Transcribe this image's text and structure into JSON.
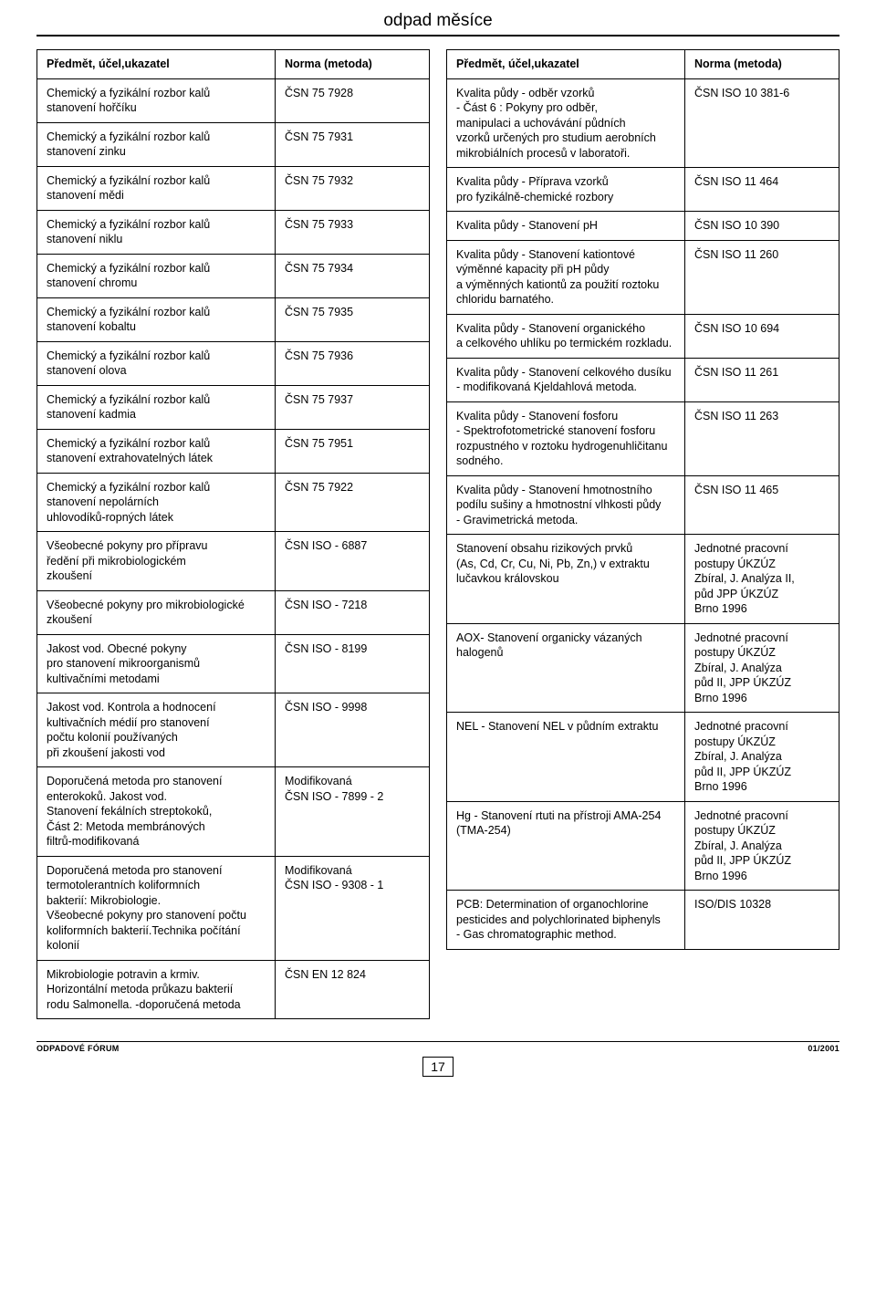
{
  "title": "odpad měsíce",
  "left_header": {
    "subject": "Předmět, účel,ukazatel",
    "norm": "Norma (metoda)"
  },
  "right_header": {
    "subject": "Předmět, účel,ukazatel",
    "norm": "Norma (metoda)"
  },
  "left_rows": [
    {
      "subject": "Chemický a fyzikální rozbor kalů\nstanovení hořčíku",
      "norm": "ČSN 75 7928"
    },
    {
      "subject": "Chemický a fyzikální rozbor kalů\nstanovení zinku",
      "norm": "ČSN 75 7931"
    },
    {
      "subject": "Chemický a fyzikální rozbor kalů\nstanovení mědi",
      "norm": "ČSN 75 7932"
    },
    {
      "subject": "Chemický a fyzikální rozbor kalů\nstanovení niklu",
      "norm": "ČSN 75 7933"
    },
    {
      "subject": "Chemický a fyzikální rozbor kalů\nstanovení chromu",
      "norm": "ČSN 75 7934"
    },
    {
      "subject": "Chemický a fyzikální rozbor kalů\nstanovení kobaltu",
      "norm": "ČSN 75 7935"
    },
    {
      "subject": "Chemický a fyzikální rozbor kalů\nstanovení olova",
      "norm": "ČSN 75 7936"
    },
    {
      "subject": "Chemický a fyzikální rozbor kalů\nstanovení kadmia",
      "norm": "ČSN 75 7937"
    },
    {
      "subject": "Chemický a fyzikální rozbor kalů\nstanovení extrahovatelných látek",
      "norm": "ČSN 75 7951"
    },
    {
      "subject": "Chemický a fyzikální rozbor kalů\nstanovení nepolárních\nuhlovodíků-ropných látek",
      "norm": "ČSN 75 7922"
    },
    {
      "subject": "Všeobecné pokyny pro přípravu\nředění při mikrobiologickém\nzkoušení",
      "norm": "ČSN ISO - 6887"
    },
    {
      "subject": "Všeobecné pokyny pro mikrobiologické\nzkoušení",
      "norm": "ČSN ISO - 7218"
    },
    {
      "subject": "Jakost vod.  Obecné pokyny\npro stanovení mikroorganismů\nkultivačními metodami",
      "norm": "ČSN ISO -  8199"
    },
    {
      "subject": "Jakost vod.  Kontrola a hodnocení\nkultivačních médií pro stanovení\npočtu kolonií používaných\npři zkoušení jakosti vod",
      "norm": "ČSN ISO - 9998"
    },
    {
      "subject": "Doporučená metoda pro stanovení\nenterokoků. Jakost vod.\nStanovení fekálních streptokoků,\nČást 2: Metoda membránových\nfiltrů-modifikovaná",
      "norm": "Modifikovaná\nČSN ISO - 7899 - 2"
    },
    {
      "subject": "Doporučená metoda pro stanovení\ntermotolerantních koliformních\nbakterií: Mikrobiologie.\nVšeobecné pokyny pro stanovení počtu\nkoliformních bakterií.Technika počítání\nkolonií",
      "norm": "Modifikovaná\nČSN ISO - 9308 - 1"
    },
    {
      "subject": "Mikrobiologie potravin a krmiv.\nHorizontální metoda průkazu bakterií\nrodu Salmonella. -doporučená metoda",
      "norm": "ČSN EN 12 824"
    }
  ],
  "right_rows": [
    {
      "subject": "Kvalita půdy - odběr vzorků\n- Část 6 : Pokyny pro odběr,\nmanipulaci a uchovávání půdních\nvzorků určených pro studium aerobních\nmikrobiálních procesů v laboratoři.",
      "norm": "ČSN ISO 10 381-6"
    },
    {
      "subject": "Kvalita půdy - Příprava vzorků\npro fyzikálně-chemické rozbory",
      "norm": "ČSN ISO 11 464"
    },
    {
      "subject": "Kvalita půdy - Stanovení  pH",
      "norm": "ČSN ISO 10 390"
    },
    {
      "subject": "Kvalita půdy - Stanovení kationtové\nvýměnné kapacity při pH půdy\na výměnných kationtů za použití roztoku\nchloridu barnatého.",
      "norm": "ČSN ISO 11 260"
    },
    {
      "subject": "Kvalita půdy - Stanovení organického\na celkového uhlíku po termickém rozkladu.",
      "norm": "ČSN ISO 10 694"
    },
    {
      "subject": "Kvalita půdy - Stanovení celkového dusíku\n- modifikovaná Kjeldahlová metoda.",
      "norm": "ČSN ISO 11 261"
    },
    {
      "subject": "Kvalita půdy - Stanovení fosforu\n- Spektrofotometrické stanovení fosforu\nrozpustného v roztoku hydrogenuhličitanu\nsodného.",
      "norm": "ČSN ISO 11 263"
    },
    {
      "subject": "Kvalita půdy -  Stanovení hmotnostního\npodílu sušiny a hmotnostní vlhkosti půdy\n- Gravimetrická metoda.",
      "norm": "ČSN ISO 11 465"
    },
    {
      "subject": "Stanovení obsahu rizikových prvků\n(As, Cd, Cr, Cu, Ni, Pb, Zn,) v extraktu\nlučavkou královskou",
      "norm": "Jednotné pracovní\n postupy ÚKZÚZ\nZbíral, J. Analýza  II,\npůd JPP ÚKZÚZ\nBrno 1996"
    },
    {
      "subject": "AOX- Stanovení organicky vázaných\nhalogenů",
      "norm": "Jednotné pracovní\npostupy ÚKZÚZ\nZbíral, J. Analýza\npůd II, JPP ÚKZÚZ\n Brno 1996"
    },
    {
      "subject": "NEL - Stanovení NEL v půdním extraktu",
      "norm": "Jednotné pracovní\npostupy ÚKZÚZ\nZbíral, J. Analýza\npůd II, JPP ÚKZÚZ\nBrno 1996"
    },
    {
      "subject": "Hg - Stanovení rtuti na přístroji AMA-254\n(TMA-254)",
      "norm": "Jednotné pracovní\npostupy ÚKZÚZ\nZbíral, J. Analýza\npůd II, JPP ÚKZÚZ\nBrno 1996"
    },
    {
      "subject": "PCB:  Determination of organochlorine\npesticides and polychlorinated biphenyls\n- Gas chromatographic method.",
      "norm": "ISO/DIS 10328"
    }
  ],
  "footer": {
    "left": "ODPADOVÉ FÓRUM",
    "right": "01/2001",
    "page": "17"
  }
}
